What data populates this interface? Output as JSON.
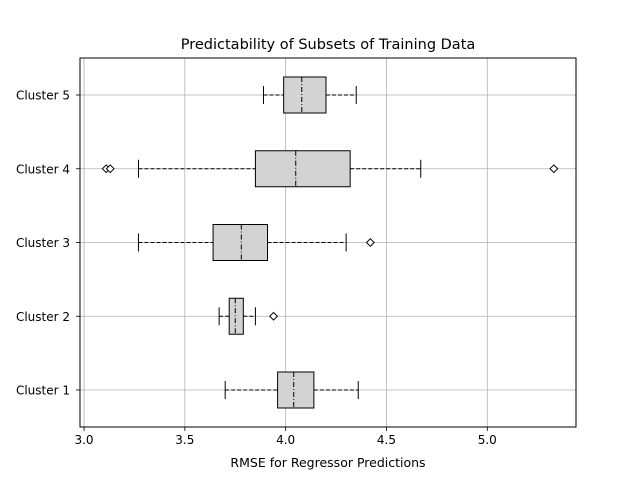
{
  "chart_data": {
    "type": "boxplot",
    "orientation": "horizontal",
    "title": "Predictability of Subsets of Training Data",
    "xlabel": "RMSE for Regressor Predictions",
    "ylabel": "",
    "xlim": [
      2.98,
      5.44
    ],
    "xticks": [
      3.0,
      3.5,
      4.0,
      4.5,
      5.0
    ],
    "xtick_labels": [
      "3.0",
      "3.5",
      "4.0",
      "4.5",
      "5.0"
    ],
    "grid": true,
    "box_color": "#d3d3d3",
    "categories": [
      "Cluster 1",
      "Cluster 2",
      "Cluster 3",
      "Cluster 4",
      "Cluster 5"
    ],
    "boxes": [
      {
        "label": "Cluster 1",
        "whisker_low": 3.7,
        "q1": 3.96,
        "median": 4.04,
        "q3": 4.14,
        "whisker_high": 4.36,
        "outliers": []
      },
      {
        "label": "Cluster 2",
        "whisker_low": 3.67,
        "q1": 3.72,
        "median": 3.75,
        "q3": 3.79,
        "whisker_high": 3.85,
        "outliers": [
          3.94
        ]
      },
      {
        "label": "Cluster 3",
        "whisker_low": 3.27,
        "q1": 3.64,
        "median": 3.78,
        "q3": 3.91,
        "whisker_high": 4.3,
        "outliers": [
          4.42
        ]
      },
      {
        "label": "Cluster 4",
        "whisker_low": 3.27,
        "q1": 3.85,
        "median": 4.05,
        "q3": 4.32,
        "whisker_high": 4.67,
        "outliers": [
          3.11,
          3.13,
          5.33
        ]
      },
      {
        "label": "Cluster 5",
        "whisker_low": 3.89,
        "q1": 3.99,
        "median": 4.08,
        "q3": 4.2,
        "whisker_high": 4.35,
        "outliers": []
      }
    ]
  }
}
